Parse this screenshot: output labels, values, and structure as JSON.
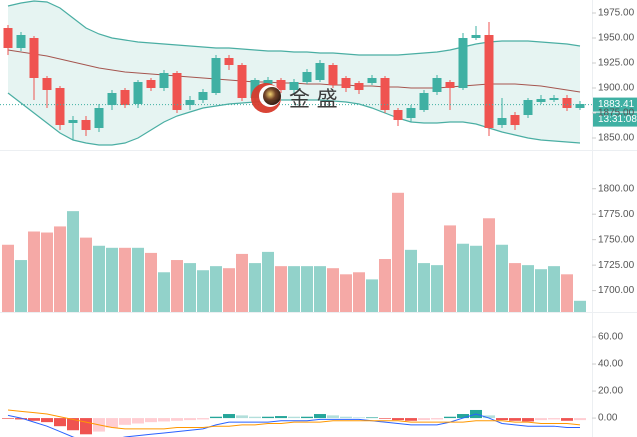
{
  "chart_data": [
    {
      "type": "candlestick",
      "open": [
        1960,
        1940,
        1950,
        1910,
        1900,
        1865,
        1868,
        1860,
        1883,
        1898,
        1884,
        1908,
        1900,
        1915,
        1883,
        1888,
        1895,
        1930,
        1923,
        1890,
        1904,
        1908,
        1898,
        1906,
        1908,
        1923,
        1910,
        1905,
        1905,
        1910,
        1878,
        1870,
        1878,
        1896,
        1906,
        1900,
        1950,
        1953,
        1863,
        1873,
        1873,
        1886,
        1888,
        1890,
        1880
      ],
      "high": [
        1963,
        1956,
        1952,
        1912,
        1902,
        1872,
        1872,
        1884,
        1898,
        1900,
        1908,
        1910,
        1918,
        1917,
        1892,
        1899,
        1933,
        1933,
        1925,
        1910,
        1911,
        1910,
        1909,
        1919,
        1928,
        1925,
        1912,
        1907,
        1913,
        1912,
        1880,
        1883,
        1898,
        1913,
        1908,
        1955,
        1962,
        1966,
        1890,
        1876,
        1890,
        1893,
        1893,
        1893,
        1887
      ],
      "low": [
        1933,
        1937,
        1888,
        1880,
        1858,
        1848,
        1852,
        1856,
        1878,
        1880,
        1880,
        1897,
        1897,
        1875,
        1878,
        1885,
        1893,
        1918,
        1887,
        1887,
        1902,
        1895,
        1895,
        1904,
        1906,
        1900,
        1896,
        1894,
        1903,
        1875,
        1862,
        1866,
        1876,
        1893,
        1878,
        1898,
        1948,
        1852,
        1860,
        1858,
        1870,
        1884,
        1886,
        1877,
        1878
      ],
      "close": [
        1940,
        1953,
        1910,
        1898,
        1863,
        1868,
        1858,
        1880,
        1895,
        1883,
        1906,
        1900,
        1915,
        1878,
        1888,
        1896,
        1930,
        1923,
        1890,
        1908,
        1908,
        1898,
        1906,
        1916,
        1925,
        1903,
        1900,
        1898,
        1910,
        1878,
        1868,
        1880,
        1895,
        1910,
        1900,
        1950,
        1953,
        1860,
        1870,
        1863,
        1888,
        1889,
        1890,
        1880,
        1884
      ],
      "bands": {
        "upper": [
          1982,
          1985,
          1987,
          1986,
          1980,
          1970,
          1960,
          1954,
          1950,
          1948,
          1946,
          1945,
          1944,
          1943,
          1942,
          1941,
          1940,
          1940,
          1939,
          1938,
          1937,
          1937,
          1936,
          1936,
          1935,
          1935,
          1934,
          1933,
          1933,
          1933,
          1933,
          1934,
          1935,
          1936,
          1938,
          1941,
          1944,
          1946,
          1947,
          1947,
          1947,
          1946,
          1945,
          1944,
          1942
        ],
        "middle": [
          1938,
          1936,
          1934,
          1932,
          1929,
          1926,
          1923,
          1920,
          1918,
          1916,
          1915,
          1914,
          1913,
          1912,
          1911,
          1910,
          1909,
          1908,
          1907,
          1906,
          1906,
          1905,
          1905,
          1904,
          1904,
          1903,
          1903,
          1902,
          1902,
          1901,
          1901,
          1900,
          1900,
          1900,
          1901,
          1902,
          1903,
          1904,
          1904,
          1904,
          1903,
          1902,
          1900,
          1898,
          1896
        ],
        "lower": [
          1895,
          1885,
          1875,
          1865,
          1855,
          1848,
          1845,
          1843,
          1843,
          1845,
          1850,
          1858,
          1866,
          1872,
          1876,
          1880,
          1882,
          1884,
          1885,
          1886,
          1887,
          1888,
          1888,
          1888,
          1888,
          1887,
          1886,
          1884,
          1880,
          1875,
          1870,
          1866,
          1865,
          1865,
          1866,
          1866,
          1864,
          1860,
          1856,
          1853,
          1850,
          1848,
          1847,
          1846,
          1845
        ]
      },
      "up_color": "#3fb0a3",
      "down_color": "#ef5350",
      "band_color": "#4aaea3",
      "band_fill": "#e6f4f2",
      "middle_color": "#a5554f",
      "last_price": 1883.41,
      "last_time": "13:31:08",
      "watermark": "金 盛",
      "ylim": [
        1838,
        1988
      ],
      "yticks": [
        {
          "value": 1975,
          "label": "1975.00"
        },
        {
          "value": 1950,
          "label": "1950.00"
        },
        {
          "value": 1925,
          "label": "1925.00"
        },
        {
          "value": 1900,
          "label": "1900.00"
        },
        {
          "value": 1875,
          "label": "1875.00"
        },
        {
          "value": 1850,
          "label": "1850.00"
        }
      ],
      "grid": false
    },
    {
      "type": "bar",
      "values": [
        1745,
        1730,
        1758,
        1757,
        1763,
        1778,
        1752,
        1744,
        1742,
        1742,
        1742,
        1737,
        1718,
        1730,
        1727,
        1720,
        1724,
        1722,
        1736,
        1727,
        1738,
        1724,
        1724,
        1724,
        1724,
        1722,
        1716,
        1718,
        1711,
        1731,
        1796,
        1740,
        1727,
        1725,
        1764,
        1746,
        1744,
        1771,
        1745,
        1727,
        1725,
        1721,
        1724,
        1716,
        1690
      ],
      "up_color": "#92d2ca",
      "down_color": "#f5a9a6",
      "ylim": [
        1679,
        1838
      ],
      "yticks": [
        {
          "value": 1800,
          "label": "1800.00"
        },
        {
          "value": 1775,
          "label": "1775.00"
        },
        {
          "value": 1750,
          "label": "1750.00"
        },
        {
          "value": 1725,
          "label": "1725.00"
        },
        {
          "value": 1700,
          "label": "1700.00"
        }
      ],
      "grid": false
    },
    {
      "type": "macd",
      "histogram": [
        -0.5,
        -1,
        -2,
        -3,
        -6,
        -9,
        -12,
        -10,
        -7,
        -5,
        -4,
        -3,
        -2.5,
        -2,
        -1.5,
        -1,
        1,
        3,
        2,
        1,
        1,
        1.5,
        1,
        1,
        3,
        2,
        1,
        0.5,
        0.5,
        -0.5,
        -1.5,
        -2,
        -1.5,
        -1,
        1,
        3,
        6,
        2,
        -1.5,
        -2,
        -2.5,
        -1.5,
        -1,
        -2,
        -1.5
      ],
      "macd": [
        2,
        0,
        -3,
        -6,
        -10,
        -14,
        -17,
        -17,
        -16,
        -14,
        -13,
        -12,
        -11,
        -10,
        -9,
        -8,
        -5,
        -3,
        -3,
        -3,
        -3,
        -2,
        -2,
        -2,
        -1,
        -1,
        -1,
        -1,
        -2,
        -3,
        -4,
        -5,
        -5,
        -5,
        -3,
        0,
        3,
        0,
        -4,
        -5,
        -6,
        -6,
        -6,
        -7,
        -7
      ],
      "signal": [
        6,
        5,
        4,
        3,
        1,
        -1,
        -3,
        -5,
        -7,
        -8,
        -8,
        -8,
        -8,
        -7,
        -7,
        -7,
        -6,
        -6,
        -5,
        -5,
        -4,
        -4,
        -3,
        -3,
        -3,
        -2,
        -2,
        -2,
        -2,
        -2,
        -2,
        -3,
        -3,
        -3,
        -3,
        -3,
        -2,
        -2,
        -2,
        -3,
        -3,
        -4,
        -4,
        -4,
        -5
      ],
      "histogram_colors": [
        "#26a69a",
        "#b2dfdb",
        "#ef5350",
        "#ffcdd2"
      ],
      "macd_color": "#2962ff",
      "signal_color": "#ff9800",
      "ylim": [
        -14,
        78.5
      ],
      "yticks": [
        {
          "value": 60,
          "label": "60.00"
        },
        {
          "value": 40,
          "label": "40.00"
        },
        {
          "value": 20,
          "label": "20.00"
        },
        {
          "value": 0,
          "label": "0.00"
        }
      ],
      "grid": false
    }
  ]
}
